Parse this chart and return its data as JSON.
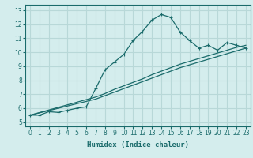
{
  "xlabel": "Humidex (Indice chaleur)",
  "bg_color": "#d4eded",
  "grid_color": "#b8d8d8",
  "line_color": "#1a6b6b",
  "xlim": [
    -0.5,
    23.5
  ],
  "ylim": [
    4.7,
    13.4
  ],
  "xticks": [
    0,
    1,
    2,
    3,
    4,
    5,
    6,
    7,
    8,
    9,
    10,
    11,
    12,
    13,
    14,
    15,
    16,
    17,
    18,
    19,
    20,
    21,
    22,
    23
  ],
  "yticks": [
    5,
    6,
    7,
    8,
    9,
    10,
    11,
    12,
    13
  ],
  "curve1_x": [
    0,
    1,
    2,
    3,
    4,
    5,
    6,
    7,
    8,
    9,
    10,
    11,
    12,
    13,
    14,
    15,
    16,
    17,
    18,
    19,
    20,
    21,
    22,
    23
  ],
  "curve1_y": [
    5.5,
    5.5,
    5.75,
    5.7,
    5.85,
    6.0,
    6.1,
    7.4,
    8.75,
    9.3,
    9.85,
    10.85,
    11.5,
    12.3,
    12.7,
    12.5,
    11.45,
    10.85,
    10.3,
    10.5,
    10.15,
    10.7,
    10.5,
    10.3
  ],
  "curve2_x": [
    0,
    7,
    8,
    9,
    10,
    11,
    12,
    13,
    14,
    15,
    16,
    17,
    18,
    19,
    20,
    21,
    22,
    23
  ],
  "curve2_y": [
    5.5,
    6.65,
    6.9,
    7.15,
    7.4,
    7.65,
    7.9,
    8.15,
    8.4,
    8.65,
    8.9,
    9.1,
    9.3,
    9.5,
    9.7,
    9.9,
    10.1,
    10.3
  ],
  "curve3_x": [
    0,
    7,
    8,
    9,
    10,
    11,
    12,
    13,
    14,
    15,
    16,
    17,
    18,
    19,
    20,
    21,
    22,
    23
  ],
  "curve3_y": [
    5.5,
    6.8,
    7.05,
    7.35,
    7.6,
    7.85,
    8.1,
    8.4,
    8.65,
    8.9,
    9.15,
    9.35,
    9.55,
    9.75,
    9.95,
    10.15,
    10.35,
    10.5
  ]
}
